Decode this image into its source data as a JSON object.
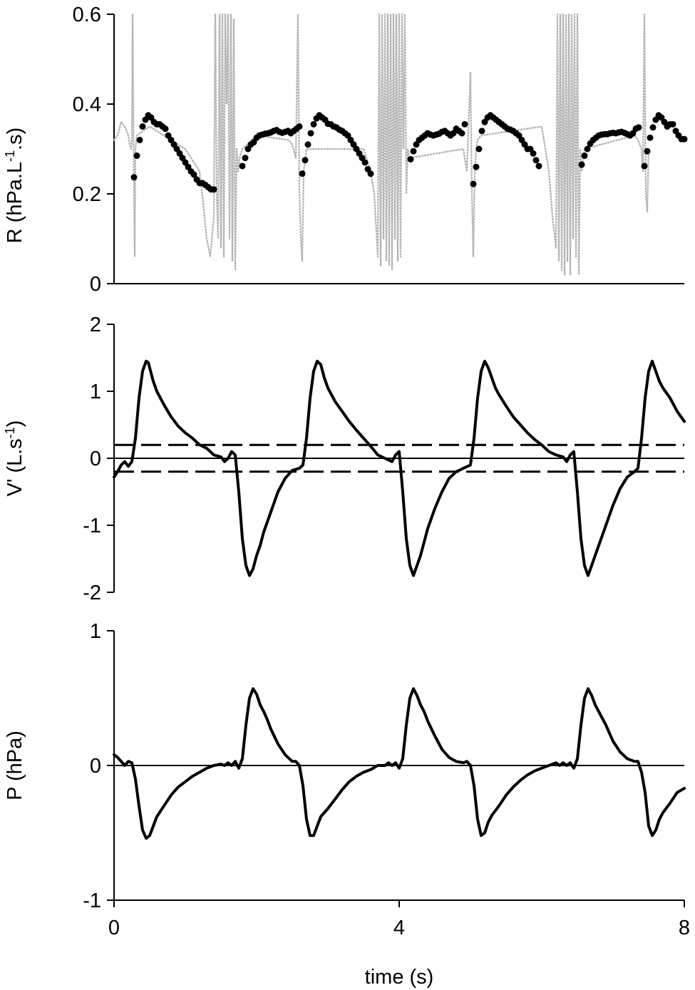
{
  "chart_data": [
    {
      "type": "scatter",
      "ylabel": "R (hPa.L-1.s)",
      "ylabel_parts": [
        "R (hPa.L",
        "-1",
        ".s)"
      ],
      "xlim": [
        0,
        8
      ],
      "ylim": [
        0,
        0.6
      ],
      "yticks": [
        "0",
        "0.2",
        "0.4",
        "0.6"
      ],
      "series": [
        {
          "style": "dotted-gray-line",
          "x": [
            0,
            0.05,
            0.1,
            0.15,
            0.2,
            0.22,
            0.24,
            0.25,
            0.26,
            0.27,
            0.28,
            0.29,
            0.3,
            0.32,
            0.5,
            1.0,
            1.2,
            1.25,
            1.3,
            1.35,
            1.4,
            1.42,
            1.44,
            1.46,
            1.48,
            1.5,
            1.52,
            1.54,
            1.56,
            1.58,
            1.6,
            1.62,
            1.64,
            1.66,
            1.68,
            1.7,
            1.72,
            1.74,
            1.76,
            1.8,
            2.0,
            2.45,
            2.5,
            2.55,
            2.58,
            2.6,
            2.62,
            2.64,
            2.66,
            2.7,
            3.5,
            3.6,
            3.65,
            3.7,
            3.72,
            3.74,
            3.76,
            3.78,
            3.8,
            3.82,
            3.84,
            3.86,
            3.88,
            3.9,
            3.92,
            3.94,
            3.96,
            3.98,
            4.0,
            4.02,
            4.04,
            4.06,
            4.08,
            4.1,
            4.12,
            4.15,
            4.9,
            4.95,
            5.0,
            5.02,
            5.04,
            5.06,
            5.08,
            5.1,
            5.15,
            6.0,
            6.05,
            6.1,
            6.15,
            6.2,
            6.22,
            6.24,
            6.26,
            6.28,
            6.3,
            6.32,
            6.34,
            6.36,
            6.38,
            6.4,
            6.42,
            6.44,
            6.46,
            6.48,
            6.5,
            6.52,
            6.54,
            6.56,
            6.6,
            7.3,
            7.35,
            7.4,
            7.42,
            7.44,
            7.46,
            7.48,
            7.5
          ],
          "y": [
            0.32,
            0.33,
            0.36,
            0.35,
            0.33,
            0.31,
            0.3,
            0.32,
            0.6,
            0.4,
            0.2,
            0.06,
            0.3,
            0.33,
            0.35,
            0.3,
            0.25,
            0.18,
            0.1,
            0.06,
            0.15,
            0.6,
            0.2,
            0.1,
            0.6,
            0.08,
            0.6,
            0.06,
            0.6,
            0.4,
            0.6,
            0.1,
            0.6,
            0.05,
            0.59,
            0.03,
            0.3,
            0.25,
            0.28,
            0.3,
            0.33,
            0.32,
            0.31,
            0.28,
            0.6,
            0.2,
            0.1,
            0.05,
            0.25,
            0.3,
            0.3,
            0.25,
            0.2,
            0.06,
            0.6,
            0.04,
            0.6,
            0.1,
            0.6,
            0.05,
            0.6,
            0.04,
            0.6,
            0.03,
            0.6,
            0.1,
            0.6,
            0.05,
            0.6,
            0.06,
            0.6,
            0.3,
            0.6,
            0.2,
            0.3,
            0.28,
            0.3,
            0.25,
            0.47,
            0.2,
            0.06,
            0.25,
            0.3,
            0.32,
            0.33,
            0.35,
            0.3,
            0.25,
            0.15,
            0.08,
            0.6,
            0.05,
            0.6,
            0.03,
            0.6,
            0.02,
            0.6,
            0.05,
            0.6,
            0.02,
            0.6,
            0.1,
            0.6,
            0.06,
            0.6,
            0.02,
            0.3,
            0.25,
            0.3,
            0.33,
            0.32,
            0.3,
            0.25,
            0.6,
            0.2,
            0.16,
            0.3
          ]
        },
        {
          "style": "black-dots",
          "x": [
            0.28,
            0.32,
            0.36,
            0.4,
            0.44,
            0.48,
            0.52,
            0.56,
            0.6,
            0.64,
            0.68,
            0.72,
            0.76,
            0.8,
            0.84,
            0.88,
            0.92,
            0.96,
            1.0,
            1.04,
            1.08,
            1.12,
            1.16,
            1.2,
            1.24,
            1.28,
            1.32,
            1.36,
            1.4,
            1.8,
            1.84,
            1.88,
            1.92,
            1.96,
            2.0,
            2.04,
            2.08,
            2.12,
            2.16,
            2.2,
            2.24,
            2.28,
            2.32,
            2.36,
            2.4,
            2.44,
            2.48,
            2.52,
            2.56,
            2.6,
            2.64,
            2.68,
            2.72,
            2.76,
            2.8,
            2.84,
            2.88,
            2.92,
            2.96,
            3.0,
            3.04,
            3.08,
            3.12,
            3.16,
            3.2,
            3.24,
            3.28,
            3.32,
            3.36,
            3.4,
            3.44,
            3.48,
            3.52,
            3.56,
            3.6,
            4.16,
            4.2,
            4.24,
            4.28,
            4.32,
            4.36,
            4.4,
            4.44,
            4.48,
            4.52,
            4.56,
            4.6,
            4.64,
            4.68,
            4.72,
            4.76,
            4.8,
            4.84,
            4.88,
            4.92,
            5.04,
            5.08,
            5.12,
            5.16,
            5.2,
            5.24,
            5.28,
            5.32,
            5.36,
            5.4,
            5.44,
            5.48,
            5.52,
            5.56,
            5.6,
            5.64,
            5.68,
            5.72,
            5.76,
            5.8,
            5.84,
            5.88,
            5.92,
            5.96,
            6.56,
            6.6,
            6.64,
            6.68,
            6.72,
            6.76,
            6.8,
            6.84,
            6.88,
            6.92,
            6.96,
            7.0,
            7.04,
            7.08,
            7.12,
            7.16,
            7.2,
            7.24,
            7.28,
            7.32,
            7.36,
            7.44,
            7.48,
            7.52,
            7.56,
            7.6,
            7.64,
            7.68,
            7.72,
            7.76,
            7.8,
            7.84,
            7.88,
            7.92,
            7.96,
            8.0
          ],
          "y": [
            0.237,
            0.285,
            0.32,
            0.35,
            0.365,
            0.375,
            0.37,
            0.36,
            0.355,
            0.355,
            0.35,
            0.345,
            0.33,
            0.32,
            0.31,
            0.3,
            0.29,
            0.28,
            0.27,
            0.26,
            0.25,
            0.243,
            0.232,
            0.224,
            0.224,
            0.22,
            0.215,
            0.21,
            0.21,
            0.262,
            0.28,
            0.3,
            0.31,
            0.315,
            0.325,
            0.33,
            0.332,
            0.334,
            0.335,
            0.337,
            0.34,
            0.342,
            0.338,
            0.336,
            0.338,
            0.34,
            0.335,
            0.34,
            0.345,
            0.35,
            0.245,
            0.275,
            0.31,
            0.335,
            0.355,
            0.368,
            0.375,
            0.37,
            0.365,
            0.356,
            0.355,
            0.35,
            0.348,
            0.343,
            0.34,
            0.335,
            0.33,
            0.32,
            0.31,
            0.3,
            0.29,
            0.28,
            0.27,
            0.255,
            0.245,
            0.277,
            0.295,
            0.31,
            0.32,
            0.325,
            0.33,
            0.335,
            0.332,
            0.33,
            0.332,
            0.334,
            0.338,
            0.34,
            0.335,
            0.33,
            0.335,
            0.345,
            0.34,
            0.335,
            0.355,
            0.222,
            0.26,
            0.3,
            0.34,
            0.36,
            0.37,
            0.375,
            0.37,
            0.365,
            0.36,
            0.355,
            0.35,
            0.345,
            0.343,
            0.34,
            0.335,
            0.33,
            0.32,
            0.31,
            0.3,
            0.3,
            0.29,
            0.275,
            0.262,
            0.265,
            0.285,
            0.3,
            0.312,
            0.32,
            0.325,
            0.33,
            0.332,
            0.333,
            0.333,
            0.335,
            0.336,
            0.335,
            0.337,
            0.338,
            0.336,
            0.333,
            0.33,
            0.335,
            0.345,
            0.348,
            0.262,
            0.295,
            0.325,
            0.348,
            0.365,
            0.375,
            0.37,
            0.36,
            0.35,
            0.355,
            0.355,
            0.34,
            0.33,
            0.322,
            0.322
          ]
        }
      ]
    },
    {
      "type": "line",
      "ylabel": "V' (L.s-1)",
      "ylabel_parts": [
        "V' (L.s",
        "-1",
        ")"
      ],
      "xlim": [
        0,
        8
      ],
      "ylim": [
        -2,
        2
      ],
      "yticks": [
        "-2",
        "-1",
        "0",
        "1",
        "2"
      ],
      "reference_lines": [
        {
          "y": 0,
          "style": "solid"
        },
        {
          "y": 0.2,
          "style": "dashed"
        },
        {
          "y": -0.2,
          "style": "dashed"
        }
      ],
      "series": [
        {
          "style": "solid-black",
          "x": [
            0,
            0.05,
            0.1,
            0.15,
            0.2,
            0.25,
            0.3,
            0.35,
            0.4,
            0.45,
            0.48,
            0.5,
            0.55,
            0.6,
            0.7,
            0.8,
            0.9,
            1.0,
            1.1,
            1.2,
            1.3,
            1.4,
            1.5,
            1.55,
            1.6,
            1.65,
            1.7,
            1.75,
            1.8,
            1.85,
            1.9,
            1.95,
            2.0,
            2.05,
            2.1,
            2.2,
            2.3,
            2.4,
            2.5,
            2.6,
            2.65,
            2.7,
            2.75,
            2.8,
            2.85,
            2.9,
            2.95,
            3.0,
            3.1,
            3.2,
            3.3,
            3.4,
            3.5,
            3.6,
            3.7,
            3.8,
            3.9,
            3.95,
            4.0,
            4.05,
            4.1,
            4.15,
            4.2,
            4.25,
            4.3,
            4.35,
            4.4,
            4.5,
            4.6,
            4.7,
            4.8,
            4.9,
            5.0,
            5.05,
            5.1,
            5.15,
            5.2,
            5.25,
            5.3,
            5.35,
            5.4,
            5.5,
            5.6,
            5.7,
            5.8,
            5.9,
            6.0,
            6.1,
            6.2,
            6.3,
            6.35,
            6.4,
            6.45,
            6.5,
            6.55,
            6.6,
            6.65,
            6.7,
            6.75,
            6.8,
            6.9,
            7.0,
            7.1,
            7.2,
            7.3,
            7.35,
            7.4,
            7.45,
            7.5,
            7.55,
            7.6,
            7.65,
            7.7,
            7.8,
            7.9,
            8.0
          ],
          "y": [
            -0.28,
            -0.2,
            -0.1,
            -0.05,
            -0.12,
            -0.05,
            0.3,
            0.9,
            1.3,
            1.45,
            1.43,
            1.35,
            1.15,
            1.0,
            0.8,
            0.62,
            0.48,
            0.38,
            0.3,
            0.2,
            0.15,
            0.05,
            0.02,
            -0.05,
            0.0,
            0.1,
            0.05,
            -0.5,
            -1.2,
            -1.6,
            -1.75,
            -1.65,
            -1.45,
            -1.3,
            -1.1,
            -0.8,
            -0.5,
            -0.3,
            -0.18,
            -0.15,
            -0.1,
            0.3,
            0.9,
            1.3,
            1.45,
            1.4,
            1.2,
            1.05,
            0.85,
            0.7,
            0.55,
            0.42,
            0.3,
            0.18,
            0.05,
            0.0,
            -0.05,
            0.05,
            0.1,
            -0.5,
            -1.2,
            -1.6,
            -1.75,
            -1.6,
            -1.45,
            -1.25,
            -1.05,
            -0.75,
            -0.5,
            -0.3,
            -0.2,
            -0.15,
            -0.1,
            0.3,
            0.9,
            1.3,
            1.45,
            1.35,
            1.2,
            1.05,
            0.95,
            0.78,
            0.62,
            0.5,
            0.38,
            0.28,
            0.2,
            0.1,
            0.05,
            0.02,
            -0.05,
            0.05,
            0.1,
            -0.5,
            -1.2,
            -1.6,
            -1.75,
            -1.6,
            -1.45,
            -1.3,
            -1.0,
            -0.7,
            -0.45,
            -0.28,
            -0.2,
            -0.15,
            0.3,
            0.9,
            1.3,
            1.45,
            1.3,
            1.15,
            1.05,
            0.9,
            0.7,
            0.55
          ]
        }
      ]
    },
    {
      "type": "line",
      "ylabel": "P (hPa)",
      "xlabel": "time (s)",
      "xlim": [
        0,
        8
      ],
      "xticks": [
        "0",
        "4",
        "8"
      ],
      "ylim": [
        -1,
        1
      ],
      "yticks": [
        "-1",
        "0",
        "1"
      ],
      "reference_lines": [
        {
          "y": 0,
          "style": "solid"
        }
      ],
      "series": [
        {
          "style": "solid-black",
          "x": [
            0,
            0.05,
            0.1,
            0.15,
            0.2,
            0.25,
            0.3,
            0.35,
            0.4,
            0.45,
            0.5,
            0.55,
            0.6,
            0.7,
            0.8,
            0.9,
            1.0,
            1.1,
            1.2,
            1.3,
            1.4,
            1.5,
            1.55,
            1.6,
            1.65,
            1.7,
            1.75,
            1.8,
            1.85,
            1.9,
            1.95,
            2.0,
            2.05,
            2.1,
            2.15,
            2.2,
            2.3,
            2.4,
            2.5,
            2.55,
            2.6,
            2.65,
            2.7,
            2.75,
            2.8,
            2.85,
            2.9,
            3.0,
            3.1,
            3.2,
            3.3,
            3.4,
            3.5,
            3.6,
            3.7,
            3.8,
            3.85,
            3.9,
            3.95,
            4.0,
            4.05,
            4.1,
            4.15,
            4.2,
            4.25,
            4.3,
            4.35,
            4.4,
            4.5,
            4.6,
            4.7,
            4.8,
            4.9,
            4.95,
            5.0,
            5.05,
            5.1,
            5.15,
            5.2,
            5.25,
            5.3,
            5.4,
            5.5,
            5.6,
            5.7,
            5.8,
            5.9,
            6.0,
            6.1,
            6.2,
            6.25,
            6.3,
            6.35,
            6.4,
            6.45,
            6.5,
            6.55,
            6.6,
            6.65,
            6.7,
            6.75,
            6.8,
            6.9,
            7.0,
            7.1,
            7.2,
            7.3,
            7.35,
            7.4,
            7.45,
            7.5,
            7.55,
            7.6,
            7.65,
            7.7,
            7.8,
            7.9,
            8.0
          ],
          "y": [
            0.08,
            0.06,
            0.03,
            0.0,
            0.03,
            0.02,
            -0.1,
            -0.3,
            -0.48,
            -0.54,
            -0.52,
            -0.45,
            -0.38,
            -0.3,
            -0.22,
            -0.16,
            -0.12,
            -0.08,
            -0.05,
            -0.02,
            0.0,
            0.01,
            0.0,
            0.02,
            0.0,
            0.03,
            -0.02,
            0.05,
            0.3,
            0.5,
            0.57,
            0.53,
            0.45,
            0.4,
            0.34,
            0.27,
            0.16,
            0.08,
            0.03,
            0.03,
            0.0,
            -0.15,
            -0.4,
            -0.52,
            -0.52,
            -0.45,
            -0.38,
            -0.32,
            -0.25,
            -0.18,
            -0.12,
            -0.08,
            -0.05,
            -0.03,
            0.0,
            0.0,
            0.02,
            0.0,
            0.02,
            -0.02,
            0.05,
            0.3,
            0.5,
            0.57,
            0.52,
            0.45,
            0.4,
            0.33,
            0.22,
            0.12,
            0.06,
            0.03,
            0.02,
            0.03,
            0.0,
            -0.15,
            -0.4,
            -0.52,
            -0.5,
            -0.42,
            -0.37,
            -0.3,
            -0.22,
            -0.16,
            -0.11,
            -0.07,
            -0.04,
            -0.02,
            0.0,
            0.02,
            0.0,
            0.02,
            0.0,
            0.02,
            -0.02,
            0.05,
            0.3,
            0.5,
            0.57,
            0.52,
            0.45,
            0.4,
            0.3,
            0.18,
            0.1,
            0.05,
            0.03,
            0.03,
            -0.05,
            -0.2,
            -0.45,
            -0.52,
            -0.48,
            -0.4,
            -0.35,
            -0.28,
            -0.2,
            -0.17
          ]
        }
      ]
    }
  ]
}
